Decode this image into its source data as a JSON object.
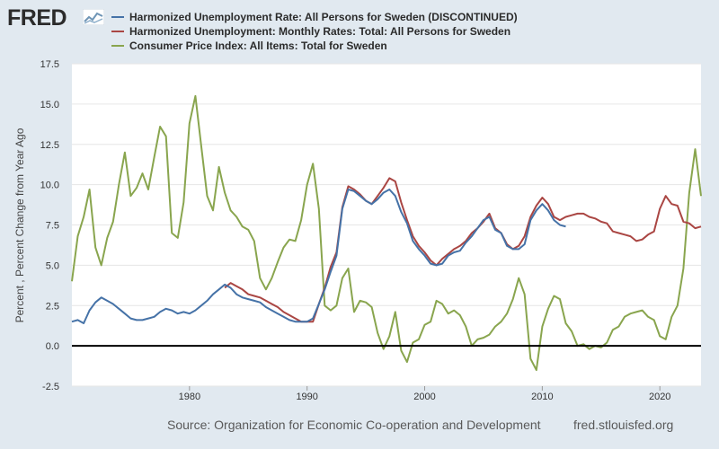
{
  "brand": {
    "name": "FRED",
    "icon": "fred-chart-icon"
  },
  "footer": {
    "source": "Source: Organization for Economic Co-operation and Development",
    "url": "fred.stlouisfed.org"
  },
  "colors": {
    "blue": "#4572a7",
    "red": "#aa4643",
    "green": "#89a54e",
    "grid": "#e6e6e6",
    "zero_line": "#000000"
  },
  "chart_data": {
    "type": "line",
    "title": "",
    "xlabel": "",
    "ylabel": "Percent , Percent Change from Year Ago",
    "xlim": [
      1970.0,
      2023.5
    ],
    "ylim": [
      -2.5,
      17.5
    ],
    "yticks": [
      -2.5,
      0.0,
      2.5,
      5.0,
      7.5,
      10.0,
      12.5,
      15.0,
      17.5
    ],
    "ytick_labels": [
      "-2.5",
      "0.0",
      "2.5",
      "5.0",
      "7.5",
      "10.0",
      "12.5",
      "15.0",
      "17.5"
    ],
    "xticks": [
      1980,
      1990,
      2000,
      2010,
      2020
    ],
    "xtick_labels": [
      "1980",
      "1990",
      "2000",
      "2010",
      "2020"
    ],
    "grid": true,
    "legend_position": "top",
    "series": [
      {
        "name": "Harmonized Unemployment Rate: All Persons for Sweden (DISCONTINUED)",
        "color": "#4572a7",
        "x": [
          1970.0,
          1970.5,
          1971.0,
          1971.5,
          1972.0,
          1972.5,
          1973.0,
          1973.5,
          1974.0,
          1974.5,
          1975.0,
          1975.5,
          1976.0,
          1976.5,
          1977.0,
          1977.5,
          1978.0,
          1978.5,
          1979.0,
          1979.5,
          1980.0,
          1980.5,
          1981.0,
          1981.5,
          1982.0,
          1982.5,
          1983.0,
          1983.5,
          1984.0,
          1984.5,
          1985.0,
          1985.5,
          1986.0,
          1986.5,
          1987.0,
          1987.5,
          1988.0,
          1988.5,
          1989.0,
          1989.5,
          1990.0,
          1990.5,
          1991.0,
          1991.5,
          1992.0,
          1992.5,
          1993.0,
          1993.5,
          1994.0,
          1994.5,
          1995.0,
          1995.5,
          1996.0,
          1996.5,
          1997.0,
          1997.5,
          1998.0,
          1998.5,
          1999.0,
          1999.5,
          2000.0,
          2000.5,
          2001.0,
          2001.5,
          2002.0,
          2002.5,
          2003.0,
          2003.5,
          2004.0,
          2004.5,
          2005.0,
          2005.5,
          2006.0,
          2006.5,
          2007.0,
          2007.5,
          2008.0,
          2008.5,
          2009.0,
          2009.5,
          2010.0,
          2010.5,
          2011.0,
          2011.5,
          2012.0
        ],
        "y": [
          1.5,
          1.6,
          1.4,
          2.2,
          2.7,
          3.0,
          2.8,
          2.6,
          2.3,
          2.0,
          1.7,
          1.6,
          1.6,
          1.7,
          1.8,
          2.1,
          2.3,
          2.2,
          2.0,
          2.1,
          2.0,
          2.2,
          2.5,
          2.8,
          3.2,
          3.5,
          3.8,
          3.6,
          3.2,
          3.0,
          2.9,
          2.8,
          2.7,
          2.4,
          2.2,
          2.0,
          1.8,
          1.6,
          1.5,
          1.5,
          1.5,
          1.7,
          2.6,
          3.5,
          4.6,
          5.6,
          8.5,
          9.7,
          9.6,
          9.3,
          9.0,
          8.8,
          9.1,
          9.5,
          9.7,
          9.3,
          8.3,
          7.6,
          6.5,
          6.0,
          5.6,
          5.1,
          5.0,
          5.1,
          5.6,
          5.8,
          5.9,
          6.4,
          6.8,
          7.3,
          7.8,
          8.0,
          7.2,
          7.0,
          6.2,
          6.0,
          6.0,
          6.3,
          7.8,
          8.4,
          8.8,
          8.4,
          7.8,
          7.5,
          7.4
        ]
      },
      {
        "name": "Harmonized Unemployment: Monthly Rates: Total: All Persons for Sweden",
        "color": "#aa4643",
        "x": [
          1983.0,
          1983.5,
          1984.0,
          1984.5,
          1985.0,
          1985.5,
          1986.0,
          1986.5,
          1987.0,
          1987.5,
          1988.0,
          1988.5,
          1989.0,
          1989.5,
          1990.0,
          1990.5,
          1991.0,
          1991.5,
          1992.0,
          1992.5,
          1993.0,
          1993.5,
          1994.0,
          1994.5,
          1995.0,
          1995.5,
          1996.0,
          1996.5,
          1997.0,
          1997.5,
          1998.0,
          1998.5,
          1999.0,
          1999.5,
          2000.0,
          2000.5,
          2001.0,
          2001.5,
          2002.0,
          2002.5,
          2003.0,
          2003.5,
          2004.0,
          2004.5,
          2005.0,
          2005.5,
          2006.0,
          2006.5,
          2007.0,
          2007.5,
          2008.0,
          2008.5,
          2009.0,
          2009.5,
          2010.0,
          2010.5,
          2011.0,
          2011.5,
          2012.0,
          2012.5,
          2013.0,
          2013.5,
          2014.0,
          2014.5,
          2015.0,
          2015.5,
          2016.0,
          2016.5,
          2017.0,
          2017.5,
          2018.0,
          2018.5,
          2019.0,
          2019.5,
          2020.0,
          2020.5,
          2021.0,
          2021.5,
          2022.0,
          2022.5,
          2023.0,
          2023.5
        ],
        "y": [
          3.6,
          3.9,
          3.7,
          3.5,
          3.2,
          3.1,
          3.0,
          2.8,
          2.6,
          2.4,
          2.1,
          1.9,
          1.7,
          1.5,
          1.5,
          1.5,
          2.6,
          3.6,
          4.9,
          5.8,
          8.6,
          9.9,
          9.7,
          9.4,
          9.0,
          8.8,
          9.3,
          9.8,
          10.4,
          10.2,
          8.9,
          7.8,
          6.8,
          6.2,
          5.8,
          5.3,
          5.0,
          5.4,
          5.7,
          6.0,
          6.2,
          6.5,
          7.0,
          7.3,
          7.7,
          8.2,
          7.3,
          7.0,
          6.3,
          6.0,
          6.2,
          6.8,
          8.0,
          8.7,
          9.2,
          8.8,
          8.0,
          7.8,
          8.0,
          8.1,
          8.2,
          8.2,
          8.0,
          7.9,
          7.7,
          7.6,
          7.1,
          7.0,
          6.9,
          6.8,
          6.5,
          6.6,
          6.9,
          7.1,
          8.5,
          9.3,
          8.8,
          8.7,
          7.7,
          7.6,
          7.3,
          7.4
        ]
      },
      {
        "name": "Consumer Price Index: All Items: Total for Sweden",
        "color": "#89a54e",
        "x": [
          1970.0,
          1970.5,
          1971.0,
          1971.5,
          1972.0,
          1972.5,
          1973.0,
          1973.5,
          1974.0,
          1974.5,
          1975.0,
          1975.5,
          1976.0,
          1976.5,
          1977.0,
          1977.5,
          1978.0,
          1978.5,
          1979.0,
          1979.5,
          1980.0,
          1980.5,
          1981.0,
          1981.5,
          1982.0,
          1982.5,
          1983.0,
          1983.5,
          1984.0,
          1984.5,
          1985.0,
          1985.5,
          1986.0,
          1986.5,
          1987.0,
          1987.5,
          1988.0,
          1988.5,
          1989.0,
          1989.5,
          1990.0,
          1990.5,
          1991.0,
          1991.5,
          1992.0,
          1992.5,
          1993.0,
          1993.5,
          1994.0,
          1994.5,
          1995.0,
          1995.5,
          1996.0,
          1996.5,
          1997.0,
          1997.5,
          1998.0,
          1998.5,
          1999.0,
          1999.5,
          2000.0,
          2000.5,
          2001.0,
          2001.5,
          2002.0,
          2002.5,
          2003.0,
          2003.5,
          2004.0,
          2004.5,
          2005.0,
          2005.5,
          2006.0,
          2006.5,
          2007.0,
          2007.5,
          2008.0,
          2008.5,
          2009.0,
          2009.5,
          2010.0,
          2010.5,
          2011.0,
          2011.5,
          2012.0,
          2012.5,
          2013.0,
          2013.5,
          2014.0,
          2014.5,
          2015.0,
          2015.5,
          2016.0,
          2016.5,
          2017.0,
          2017.5,
          2018.0,
          2018.5,
          2019.0,
          2019.5,
          2020.0,
          2020.5,
          2021.0,
          2021.5,
          2022.0,
          2022.5,
          2023.0,
          2023.5
        ],
        "y": [
          4.0,
          6.8,
          8.0,
          9.7,
          6.1,
          5.0,
          6.7,
          7.7,
          10.0,
          12.0,
          9.3,
          9.8,
          10.7,
          9.7,
          11.7,
          13.6,
          13.0,
          7.0,
          6.7,
          8.9,
          13.8,
          15.5,
          12.4,
          9.3,
          8.4,
          11.1,
          9.5,
          8.4,
          8.0,
          7.4,
          7.2,
          6.5,
          4.2,
          3.5,
          4.2,
          5.2,
          6.1,
          6.6,
          6.5,
          7.8,
          10.0,
          11.3,
          8.5,
          2.5,
          2.2,
          2.5,
          4.2,
          4.8,
          2.1,
          2.8,
          2.7,
          2.4,
          0.8,
          -0.2,
          0.6,
          2.1,
          -0.3,
          -1.0,
          0.2,
          0.4,
          1.3,
          1.5,
          2.8,
          2.6,
          2.0,
          2.2,
          1.9,
          1.2,
          0.0,
          0.4,
          0.5,
          0.7,
          1.2,
          1.5,
          2.0,
          2.9,
          4.2,
          3.2,
          -0.8,
          -1.5,
          1.2,
          2.3,
          3.1,
          2.9,
          1.4,
          0.9,
          0.0,
          0.1,
          -0.2,
          0.0,
          -0.1,
          0.2,
          1.0,
          1.2,
          1.8,
          2.0,
          2.1,
          2.2,
          1.8,
          1.6,
          0.6,
          0.4,
          1.8,
          2.5,
          4.8,
          9.5,
          12.2,
          9.3
        ]
      }
    ]
  }
}
